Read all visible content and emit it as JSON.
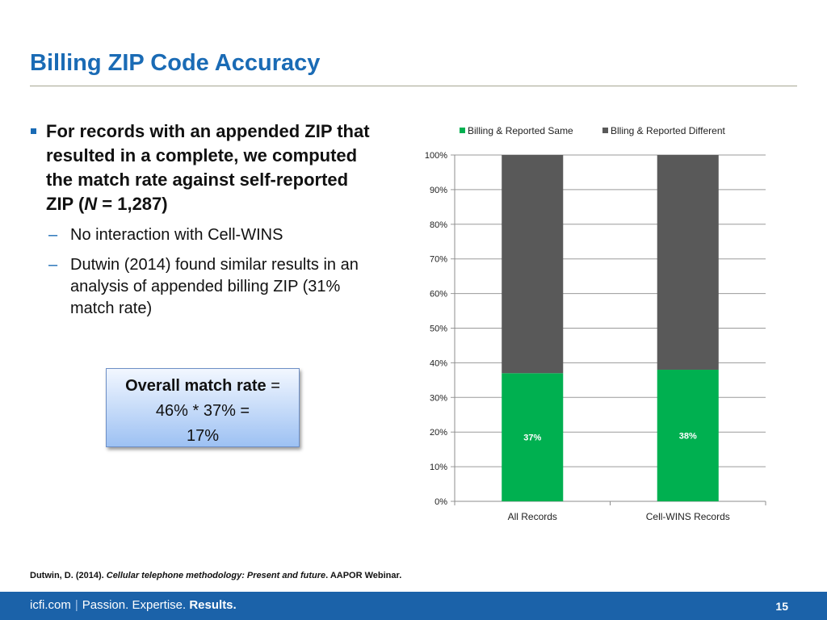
{
  "slide": {
    "title": "Billing ZIP Code Accuracy",
    "page_number": "15"
  },
  "bullets": {
    "main_part1": "For records with an appended ZIP that resulted in a complete, we computed the match rate against self-reported ZIP (",
    "main_italic": "N",
    "main_part2": " = 1,287)",
    "sub": [
      "No interaction with Cell-WINS",
      "Dutwin (2014) found similar results in an analysis of appended billing ZIP (31% match rate)"
    ],
    "dash": "–"
  },
  "callout": {
    "bold": "Overall match rate",
    "eq": " =",
    "line2": "46% * 37% =",
    "line3": "17%"
  },
  "footnote": {
    "author": "Dutwin, D. (2014). ",
    "work": "Cellular telephone methodology: Present and future",
    "rest": ". AAPOR Webinar."
  },
  "footer": {
    "site": "icfi.com",
    "sep": "|",
    "w1": "Passion.",
    "w2": "Expertise.",
    "w3": "Results."
  },
  "chart_data": {
    "type": "bar",
    "stacked": true,
    "categories": [
      "All Records",
      "Cell-WINS Records"
    ],
    "series": [
      {
        "name": "Billing & Reported Same",
        "values": [
          37,
          38
        ],
        "labels": [
          "37%",
          "38%"
        ],
        "color": "#00b050"
      },
      {
        "name": "Blling & Reported Different",
        "values": [
          63,
          62
        ],
        "color": "#595959"
      }
    ],
    "ylim": [
      0,
      100
    ],
    "y_ticks": [
      "0%",
      "10%",
      "20%",
      "30%",
      "40%",
      "50%",
      "60%",
      "70%",
      "80%",
      "90%",
      "100%"
    ],
    "grid": true,
    "legend": "top"
  }
}
